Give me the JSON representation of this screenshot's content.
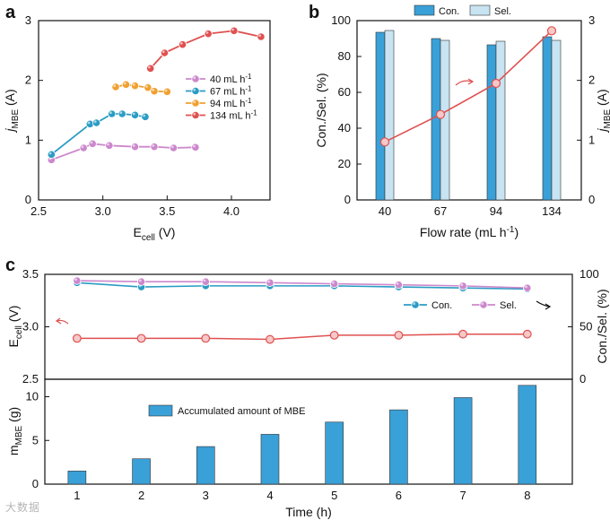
{
  "colors": {
    "pink": "#cc88cc",
    "teal": "#2a9cc4",
    "orange": "#f0a030",
    "red": "#e05050",
    "bar_con": "#3aa0d8",
    "bar_sel": "#c8e4f2",
    "bar_mbe": "#3aa0d8",
    "axis": "#111111"
  },
  "watermark": "大数据",
  "chart_data": [
    {
      "panel": "a",
      "type": "line",
      "xlabel": "E",
      "xlabel_sub": "cell",
      "xlabel_unit": " (V)",
      "ylabel": "j",
      "ylabel_sub": "MBE",
      "ylabel_unit": " (A)",
      "xlim": [
        2.5,
        4.3
      ],
      "ylim": [
        0,
        3
      ],
      "xticks": [
        "2.5",
        "3.0",
        "3.5",
        "4.0"
      ],
      "yticks": [
        "0",
        "1",
        "2",
        "3"
      ],
      "legend_position": "right",
      "series": [
        {
          "name": "40 mL h",
          "sup": "-1",
          "color_key": "pink",
          "x": [
            2.6,
            2.85,
            2.92,
            3.05,
            3.25,
            3.4,
            3.55,
            3.72
          ],
          "y": [
            0.67,
            0.87,
            0.94,
            0.91,
            0.89,
            0.89,
            0.87,
            0.88
          ]
        },
        {
          "name": "67 mL h",
          "sup": "-1",
          "color_key": "teal",
          "x": [
            2.6,
            2.9,
            2.95,
            3.07,
            3.15,
            3.25,
            3.33
          ],
          "y": [
            0.76,
            1.27,
            1.29,
            1.44,
            1.44,
            1.42,
            1.39
          ]
        },
        {
          "name": "94 mL h",
          "sup": "-1",
          "color_key": "orange",
          "x": [
            3.1,
            3.18,
            3.25,
            3.35,
            3.4,
            3.5
          ],
          "y": [
            1.89,
            1.93,
            1.91,
            1.88,
            1.82,
            1.81
          ]
        },
        {
          "name": "134 mL h",
          "sup": "-1",
          "color_key": "red",
          "x": [
            3.37,
            3.48,
            3.62,
            3.82,
            4.02,
            4.23
          ],
          "y": [
            2.2,
            2.46,
            2.6,
            2.78,
            2.83,
            2.73
          ]
        }
      ]
    },
    {
      "panel": "b",
      "type": "bar",
      "categories": [
        "40",
        "67",
        "94",
        "134"
      ],
      "xlabel": "Flow rate (mL h",
      "xlabel_sup": "-1",
      "xlabel_end": ")",
      "ylabel": "Con./Sel. (%)",
      "ylabel2": "j",
      "ylabel2_sub": "MBE",
      "ylabel2_unit": " (A)",
      "ylim": [
        0,
        100
      ],
      "ylim2": [
        0,
        3
      ],
      "yticks": [
        "0",
        "20",
        "40",
        "60",
        "80",
        "100"
      ],
      "yticks2": [
        "0",
        "1",
        "2",
        "3"
      ],
      "legend_position": "top",
      "series": [
        {
          "name": "Con.",
          "color_key": "bar_con",
          "values": [
            93.5,
            90,
            86.5,
            91
          ]
        },
        {
          "name": "Sel.",
          "color_key": "bar_sel",
          "values": [
            94.5,
            89,
            88.5,
            89
          ]
        }
      ],
      "line_series": {
        "color_key": "red",
        "axis": "right",
        "values": [
          0.97,
          1.43,
          1.95,
          2.83
        ]
      }
    },
    {
      "panel": "c",
      "type": "line",
      "xlabel": "Time (h)",
      "ylabel": "E",
      "ylabel_sub": "cell",
      "ylabel_unit": " (V)",
      "ylabel2": "Con./Sel. (%)",
      "x": [
        1,
        2,
        3,
        4,
        5,
        6,
        7,
        8
      ],
      "xticks": [
        "1",
        "2",
        "3",
        "4",
        "5",
        "6",
        "7",
        "8"
      ],
      "ylim": [
        2.5,
        3.5
      ],
      "yticks": [
        "2.5",
        "3.0",
        "3.5"
      ],
      "ylim2": [
        0,
        100
      ],
      "yticks2": [
        "0",
        "50",
        "100"
      ],
      "legend_position": "right",
      "ecell": [
        2.89,
        2.89,
        2.89,
        2.88,
        2.92,
        2.92,
        2.93,
        2.93
      ],
      "series": [
        {
          "name": "Con.",
          "color_key": "teal",
          "axis": "right",
          "values": [
            92,
            88,
            89,
            89,
            89,
            88,
            87,
            86
          ]
        },
        {
          "name": "Sel.",
          "color_key": "pink",
          "axis": "right",
          "values": [
            94,
            93,
            93,
            92,
            91,
            90,
            89,
            87
          ]
        }
      ]
    },
    {
      "panel": "c-lower",
      "type": "bar",
      "categories": [
        "1",
        "2",
        "3",
        "4",
        "5",
        "6",
        "7",
        "8"
      ],
      "values": [
        1.5,
        2.9,
        4.3,
        5.7,
        7.1,
        8.5,
        9.9,
        11.3
      ],
      "xlabel": "Time (h)",
      "ylabel": "m",
      "ylabel_sub": "MBE",
      "ylabel_unit": " (g)",
      "ylim": [
        0,
        12
      ],
      "yticks": [
        "0",
        "5",
        "10"
      ],
      "legend_position": "top-left",
      "series": [
        {
          "name": "Accumulated amount of MBE",
          "color_key": "bar_mbe"
        }
      ]
    }
  ]
}
